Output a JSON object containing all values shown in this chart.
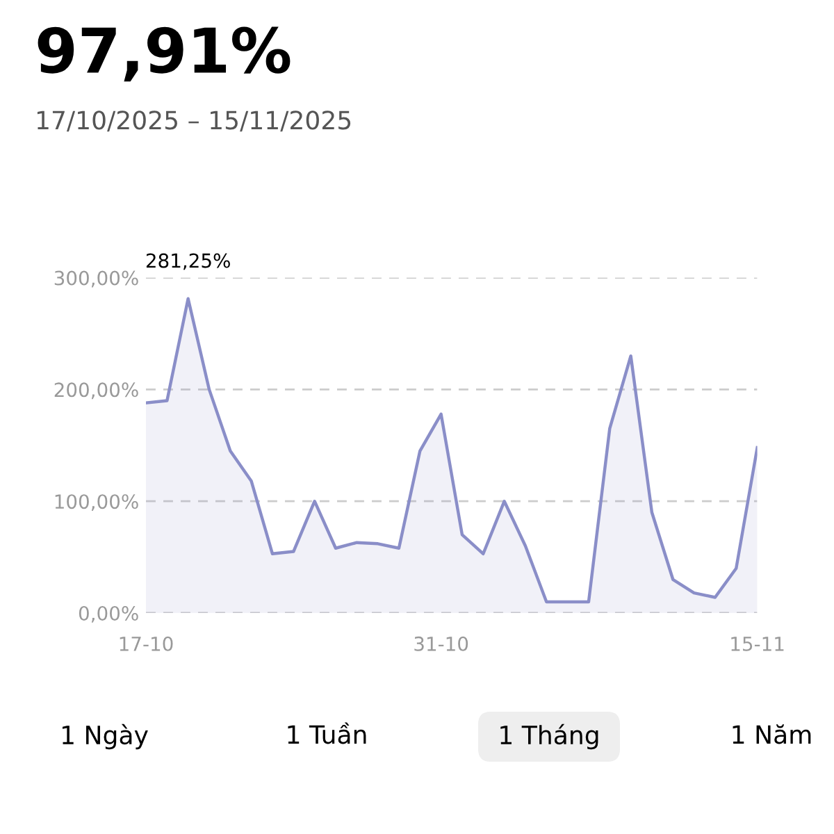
{
  "chart_data": {
    "type": "area",
    "title": "97,91%",
    "subtitle": "17/10/2025 – 15/11/2025",
    "x": [
      "2025-10-17",
      "2025-10-18",
      "2025-10-19",
      "2025-10-20",
      "2025-10-21",
      "2025-10-22",
      "2025-10-23",
      "2025-10-24",
      "2025-10-25",
      "2025-10-26",
      "2025-10-27",
      "2025-10-28",
      "2025-10-29",
      "2025-10-30",
      "2025-10-31",
      "2025-11-01",
      "2025-11-02",
      "2025-11-03",
      "2025-11-04",
      "2025-11-05",
      "2025-11-06",
      "2025-11-07",
      "2025-11-08",
      "2025-11-09",
      "2025-11-10",
      "2025-11-11",
      "2025-11-12",
      "2025-11-13",
      "2025-11-14",
      "2025-11-15"
    ],
    "series": [
      {
        "color": "#8a8ec8",
        "values": [
          188,
          190,
          281.25,
          200,
          145,
          118,
          53,
          55,
          100,
          58,
          63,
          62,
          58,
          145,
          178,
          70,
          53,
          100,
          60,
          10,
          10,
          10,
          165,
          230,
          90,
          30,
          18,
          14,
          40,
          148
        ]
      }
    ],
    "xlim": [
      "2025-10-17",
      "2025-11-15"
    ],
    "xticks": [
      {
        "value": "2025-10-17",
        "label": "17-10"
      },
      {
        "value": "2025-10-31",
        "label": "31-10"
      },
      {
        "value": "2025-11-15",
        "label": "15-11"
      }
    ],
    "ylim": [
      0,
      300
    ],
    "yticks": [
      {
        "value": 0,
        "label": "0,00%"
      },
      {
        "value": 100,
        "label": "100,00%"
      },
      {
        "value": 200,
        "label": "200,00%"
      },
      {
        "value": 300,
        "label": "300,00%"
      }
    ],
    "grid": "y",
    "legend": false,
    "annotations": [
      {
        "text": "281,25%",
        "x": "2025-10-19",
        "y": 281.25
      },
      "1 Ngày",
      "1 Tuần",
      "1 Tháng",
      "1 Năm"
    ]
  }
}
